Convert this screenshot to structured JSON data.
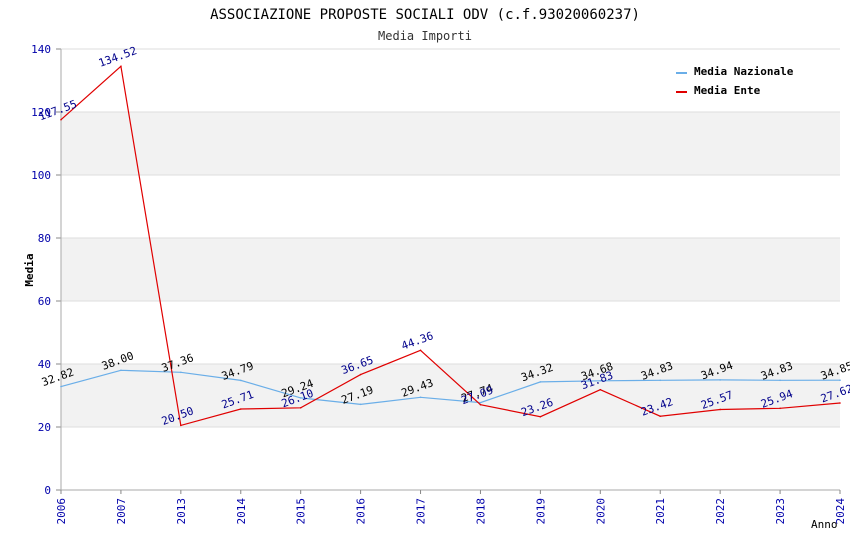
{
  "chart_data": {
    "type": "line",
    "title": "ASSOCIAZIONE PROPOSTE SOCIALI ODV (c.f.93020060237)",
    "subtitle": "Media Importi",
    "xlabel": "Anno",
    "ylabel": "Media",
    "ylim": [
      0,
      140
    ],
    "yticks": [
      0,
      20,
      40,
      60,
      80,
      100,
      120,
      140
    ],
    "categories": [
      "2006",
      "2007",
      "2013",
      "2014",
      "2015",
      "2016",
      "2017",
      "2018",
      "2019",
      "2020",
      "2021",
      "2022",
      "2023",
      "2024"
    ],
    "series": [
      {
        "name": "Media Nazionale",
        "color": "#6aaee8",
        "label_color": "#000000",
        "values": [
          32.82,
          38.0,
          37.36,
          34.79,
          29.24,
          27.19,
          29.43,
          27.74,
          34.32,
          34.68,
          34.83,
          34.94,
          34.83,
          34.85
        ],
        "labels": [
          "32.82",
          "38.00",
          "37.36",
          "34.79",
          "29.24",
          "27.19",
          "29.43",
          "27.74",
          "34.32",
          "34.68",
          "34.83",
          "34.94",
          "34.83",
          "34.85"
        ]
      },
      {
        "name": "Media Ente",
        "color": "#e00000",
        "label_color": "#00008b",
        "values": [
          117.55,
          134.52,
          20.5,
          25.71,
          26.1,
          36.65,
          44.36,
          27.09,
          23.26,
          31.83,
          23.42,
          25.57,
          25.94,
          27.62
        ],
        "labels": [
          "117.55",
          "134.52",
          "20.50",
          "25.71",
          "26.10",
          "36.65",
          "44.36",
          "27.09",
          "23.26",
          "31.83",
          "23.42",
          "25.57",
          "25.94",
          "27.62"
        ]
      }
    ],
    "legend_position": "top-right",
    "grid": true,
    "band_color": "#f2f2f2",
    "tick_color": "#0000aa"
  }
}
